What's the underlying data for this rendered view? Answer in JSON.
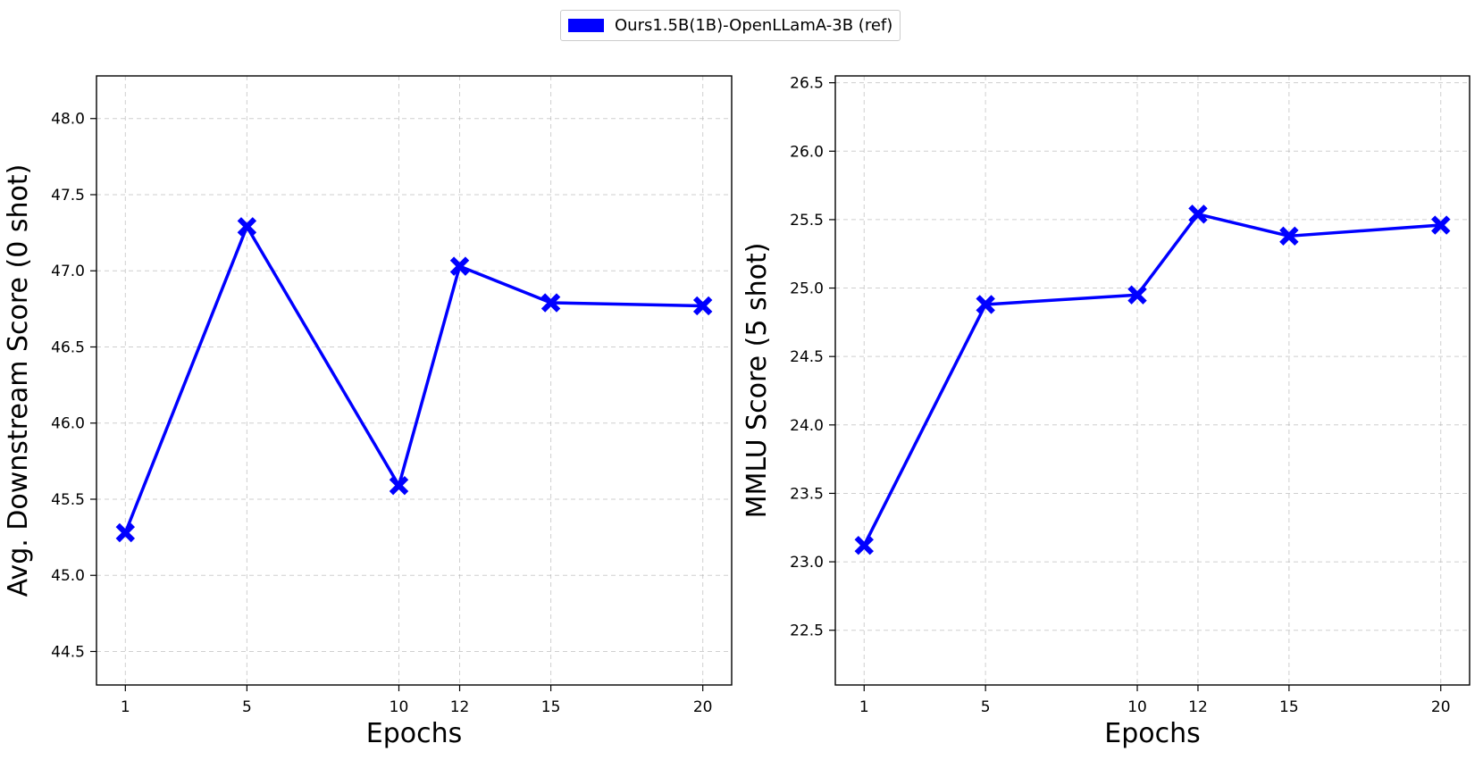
{
  "legend": {
    "label": "Ours1.5B(1B)-OpenLLamA-3B (ref)",
    "color": "#0000ff"
  },
  "chart_data": [
    {
      "type": "line",
      "xlabel": "Epochs",
      "ylabel": "Avg. Downstream Score (0 shot)",
      "x": [
        1,
        5,
        10,
        12,
        15,
        20
      ],
      "xticks": [
        1,
        5,
        10,
        12,
        15,
        20
      ],
      "xlim": [
        0.05,
        20.95
      ],
      "yticks": [
        44.5,
        45.0,
        45.5,
        46.0,
        46.5,
        47.0,
        47.5,
        48.0
      ],
      "ylim": [
        44.28,
        48.28
      ],
      "series": [
        {
          "name": "Ours1.5B(1B)-OpenLLamA-3B (ref)",
          "color": "#0000ff",
          "marker": "X",
          "values": [
            45.28,
            47.29,
            45.59,
            47.03,
            46.79,
            46.77
          ]
        }
      ],
      "grid": true
    },
    {
      "type": "line",
      "xlabel": "Epochs",
      "ylabel": "MMLU Score (5 shot)",
      "x": [
        1,
        5,
        10,
        12,
        15,
        20
      ],
      "xticks": [
        1,
        5,
        10,
        12,
        15,
        20
      ],
      "xlim": [
        0.05,
        20.95
      ],
      "yticks": [
        22.5,
        23.0,
        23.5,
        24.0,
        24.5,
        25.0,
        25.5,
        26.0,
        26.5
      ],
      "ylim": [
        22.1,
        26.55
      ],
      "series": [
        {
          "name": "Ours1.5B(1B)-OpenLLamA-3B (ref)",
          "color": "#0000ff",
          "marker": "X",
          "values": [
            23.12,
            24.88,
            24.95,
            25.54,
            25.38,
            25.46
          ]
        }
      ],
      "grid": true
    }
  ]
}
